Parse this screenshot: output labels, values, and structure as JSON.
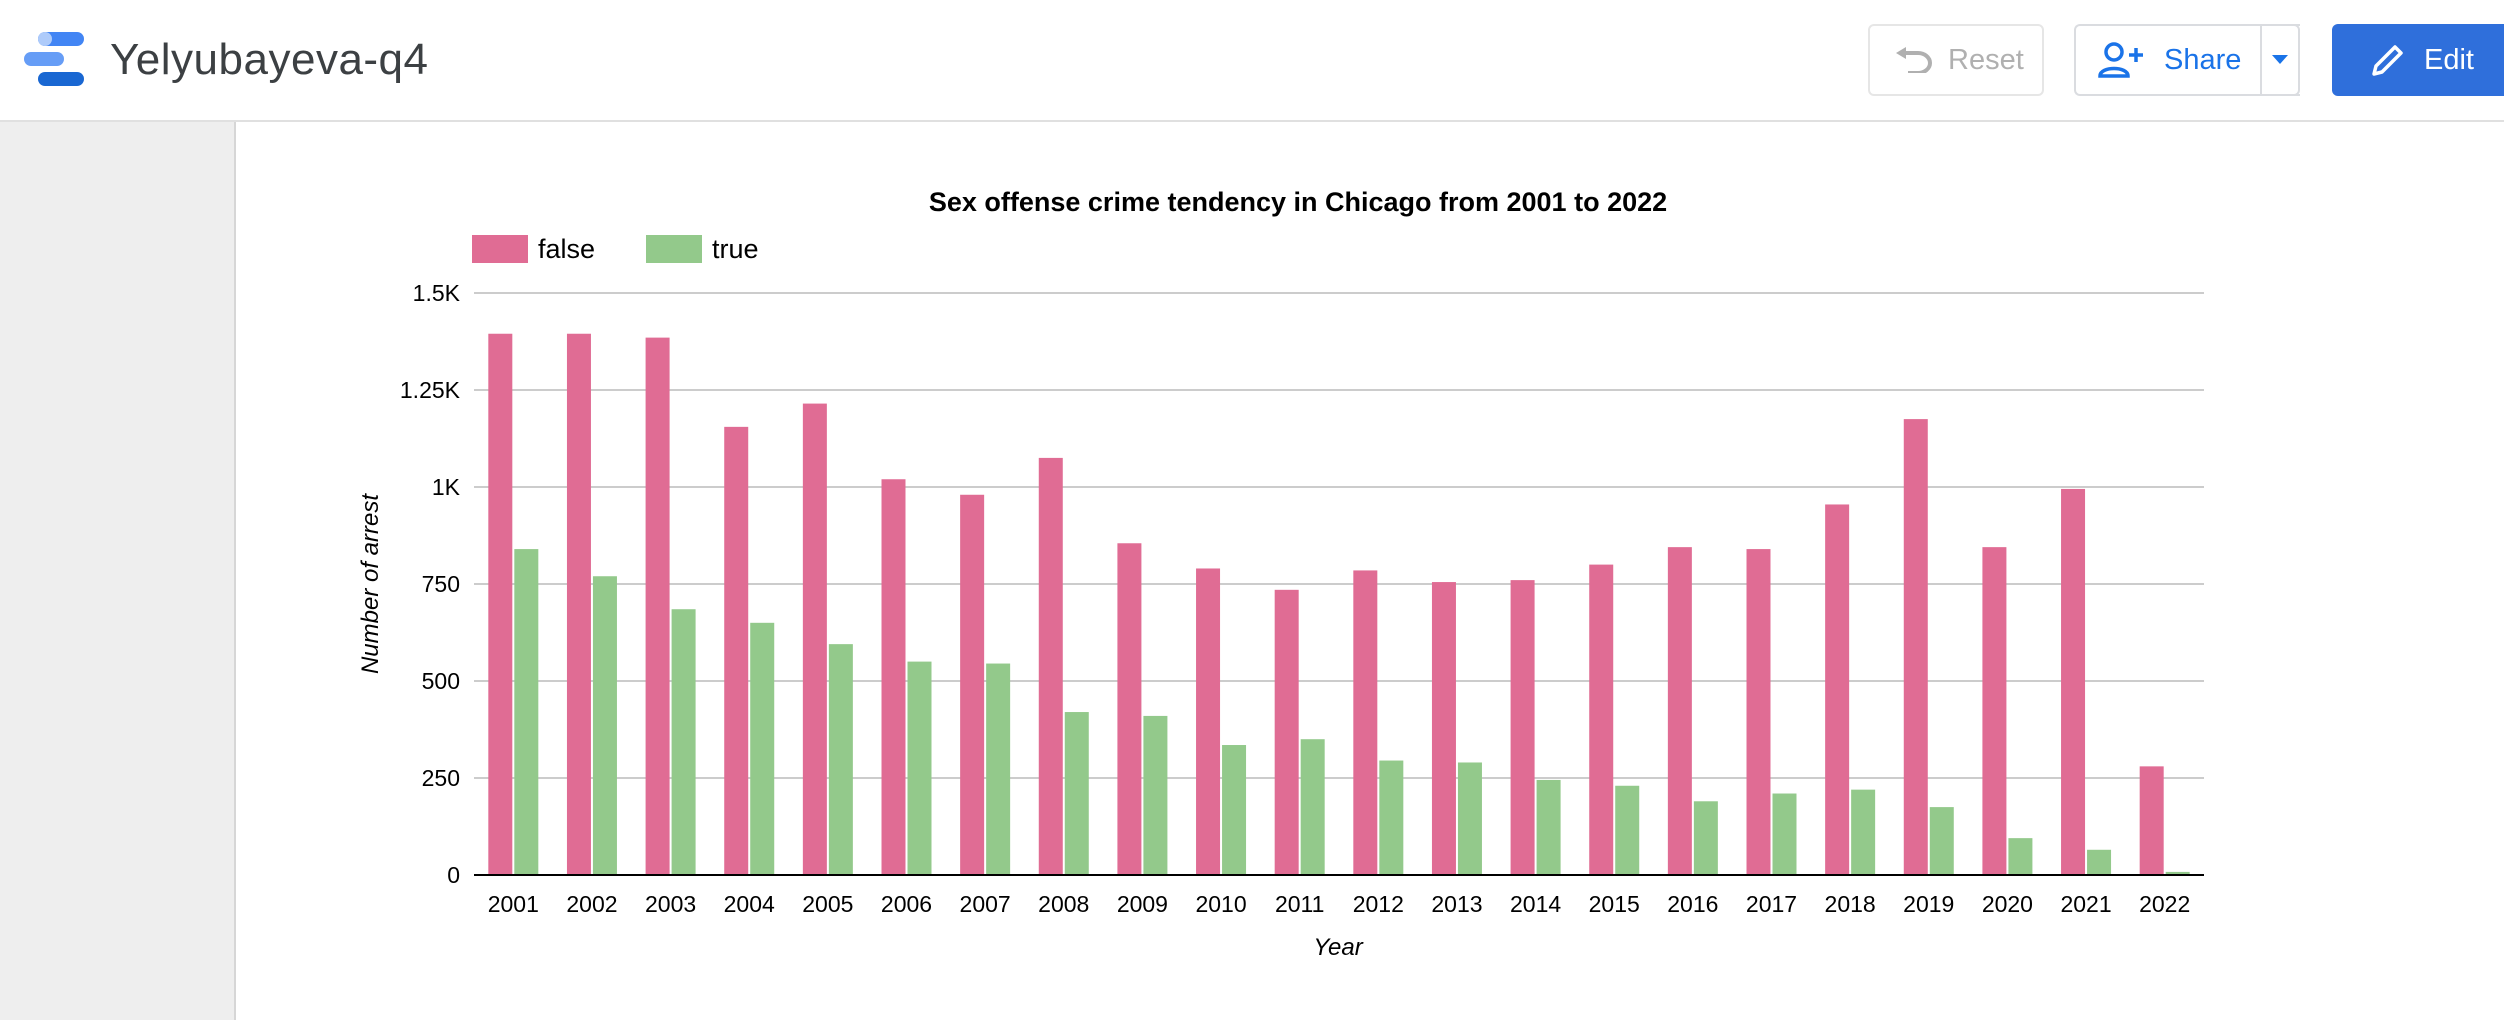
{
  "header": {
    "title": "Yelyubayeva-q4",
    "reset_label": "Reset",
    "share_label": "Share",
    "edit_label": "Edit"
  },
  "icons": {
    "logo": "looker-studio-logo-icon",
    "reset": "undo-icon",
    "share": "add-person-icon",
    "dropdown": "caret-down-icon",
    "edit": "pencil-icon"
  },
  "colors": {
    "false": "#e06c94",
    "true": "#93c98b",
    "edit_button": "#2f6fdb",
    "share_text": "#1a73e8"
  },
  "chart_data": {
    "type": "bar",
    "title": "Sex offense crime tendency in Chicago from 2001 to 2022",
    "xlabel": "Year",
    "ylabel": "Number of arrest",
    "ylim": [
      0,
      1500
    ],
    "yticks": [
      0,
      250,
      500,
      750,
      1000,
      1250,
      1500
    ],
    "ytick_labels": [
      "0",
      "250",
      "500",
      "750",
      "1K",
      "1.25K",
      "1.5K"
    ],
    "legend_position": "top-left",
    "grid": true,
    "categories": [
      "2001",
      "2002",
      "2003",
      "2004",
      "2005",
      "2006",
      "2007",
      "2008",
      "2009",
      "2010",
      "2011",
      "2012",
      "2013",
      "2014",
      "2015",
      "2016",
      "2017",
      "2018",
      "2019",
      "2020",
      "2021",
      "2022"
    ],
    "series": [
      {
        "name": "false",
        "color": "#e06c94",
        "values": [
          1395,
          1395,
          1385,
          1155,
          1215,
          1020,
          980,
          1075,
          855,
          790,
          735,
          785,
          755,
          760,
          800,
          845,
          840,
          955,
          1175,
          845,
          995,
          280
        ]
      },
      {
        "name": "true",
        "color": "#93c98b",
        "values": [
          840,
          770,
          685,
          650,
          595,
          550,
          545,
          420,
          410,
          335,
          350,
          295,
          290,
          245,
          230,
          190,
          210,
          220,
          175,
          95,
          65,
          8
        ]
      }
    ]
  }
}
